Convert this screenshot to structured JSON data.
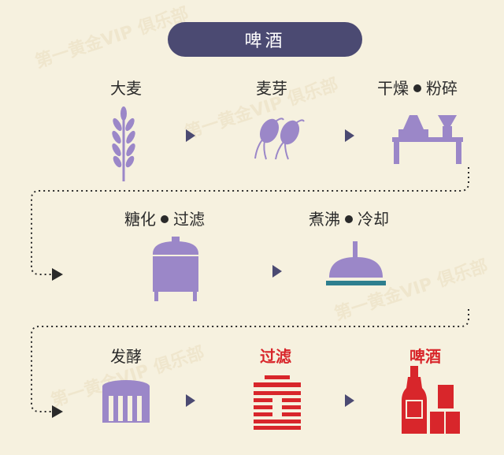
{
  "title": "啤酒",
  "steps": {
    "barley": "大麦",
    "malt": "麦芽",
    "dry_a": "干燥",
    "dry_b": "粉碎",
    "sacch_a": "糖化",
    "sacch_b": "过滤",
    "boil_a": "煮沸",
    "boil_b": "冷却",
    "ferment": "发酵",
    "filter": "过滤",
    "beer": "啤酒"
  },
  "watermark": "第一黄金VIP 俱乐部",
  "colors": {
    "background": "#f6f1df",
    "pill": "#4b4a72",
    "icon_purple": "#9b87c8",
    "highlight_red": "#d8262b",
    "teal_base": "#2e7f8f"
  },
  "icons": [
    "wheat-icon",
    "sprout-icon",
    "dryer-mill-icon",
    "mash-tank-icon",
    "boil-kettle-icon",
    "fermenter-icon",
    "filter-stack-icon",
    "beer-bottles-icon"
  ]
}
